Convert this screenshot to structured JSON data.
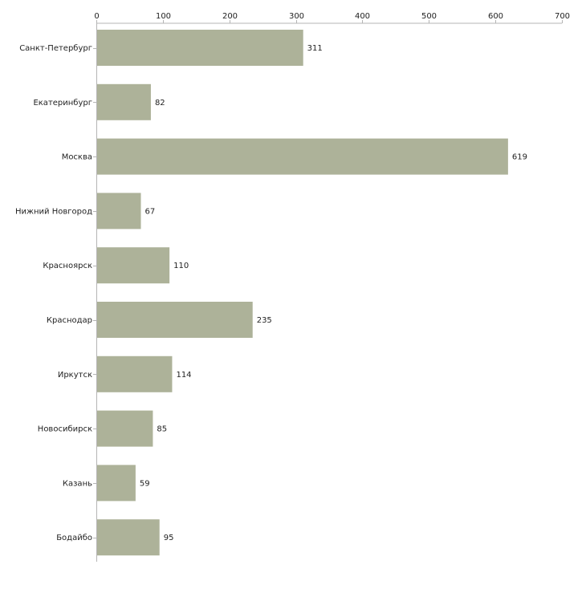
{
  "chart_data": {
    "type": "bar",
    "orientation": "horizontal",
    "categories": [
      "Санкт-Петербург",
      "Екатеринбург",
      "Москва",
      "Нижний Новгород",
      "Красноярск",
      "Краснодар",
      "Иркутск",
      "Новосибирск",
      "Казань",
      "Бодайбо"
    ],
    "values": [
      311,
      82,
      619,
      67,
      110,
      235,
      114,
      85,
      59,
      95
    ],
    "value_labels": [
      "311",
      "82",
      "619",
      "67",
      "110",
      "235",
      "114",
      "85",
      "59",
      "95"
    ],
    "xlim": [
      0,
      700
    ],
    "x_ticks": [
      0,
      100,
      200,
      300,
      400,
      500,
      600,
      700
    ],
    "x_tick_labels": [
      "0",
      "100",
      "200",
      "300",
      "400",
      "500",
      "600",
      "700"
    ],
    "axis_position": "top",
    "grid": false,
    "legend": "none",
    "title": "",
    "xlabel": "",
    "ylabel": ""
  },
  "colors": {
    "bar": "#adb299",
    "axis": "#b4b4b4",
    "text": "#222222"
  }
}
